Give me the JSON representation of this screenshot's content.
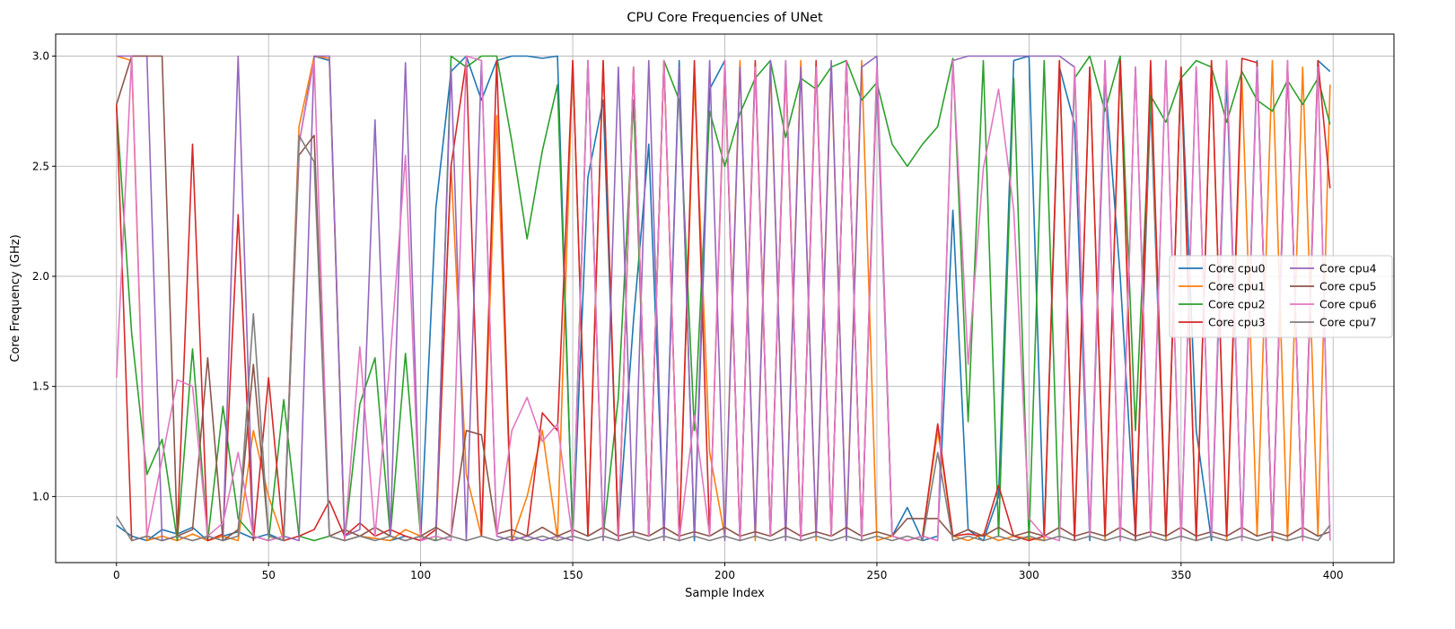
{
  "chart_data": {
    "type": "line",
    "title": "CPU Core Frequencies of UNet",
    "xlabel": "Sample Index",
    "ylabel": "Core Frequency (GHz)",
    "xlim": [
      -20,
      420
    ],
    "ylim": [
      0.7,
      3.1
    ],
    "xticks": [
      0,
      50,
      100,
      150,
      200,
      250,
      300,
      350,
      400
    ],
    "yticks": [
      1.0,
      1.5,
      2.0,
      2.5,
      3.0
    ],
    "ytick_labels": [
      "1.0",
      "1.5",
      "2.0",
      "2.5",
      "3.0"
    ],
    "grid": true,
    "legend_position": "center-right",
    "legend_columns": 2,
    "x": [
      0,
      5,
      10,
      15,
      20,
      25,
      30,
      35,
      40,
      45,
      50,
      55,
      60,
      65,
      70,
      75,
      80,
      85,
      90,
      95,
      100,
      105,
      110,
      115,
      120,
      125,
      130,
      135,
      140,
      145,
      150,
      155,
      160,
      165,
      170,
      175,
      180,
      185,
      190,
      195,
      200,
      205,
      210,
      215,
      220,
      225,
      230,
      235,
      240,
      245,
      250,
      255,
      260,
      265,
      270,
      275,
      280,
      285,
      290,
      295,
      300,
      305,
      310,
      315,
      320,
      325,
      330,
      335,
      340,
      345,
      350,
      355,
      360,
      365,
      370,
      375,
      380,
      385,
      390,
      395,
      399
    ],
    "series": [
      {
        "name": "Core cpu0",
        "color": "#1f77b4",
        "values": [
          0.87,
          0.82,
          0.8,
          0.85,
          0.83,
          0.86,
          0.8,
          0.82,
          0.84,
          0.81,
          0.83,
          0.8,
          2.6,
          3.0,
          2.98,
          0.8,
          0.82,
          0.81,
          0.8,
          0.82,
          0.8,
          2.31,
          2.93,
          3.0,
          2.8,
          2.98,
          3.0,
          3.0,
          2.99,
          3.0,
          0.8,
          2.45,
          2.8,
          0.85,
          1.8,
          2.6,
          0.82,
          2.98,
          0.8,
          2.85,
          2.98,
          0.8,
          2.95,
          0.82,
          2.98,
          0.8,
          2.95,
          0.83,
          2.98,
          0.8,
          2.9,
          0.82,
          0.95,
          0.8,
          0.82,
          2.3,
          0.85,
          0.8,
          1.0,
          2.98,
          3.0,
          0.8,
          2.95,
          2.69,
          0.8,
          2.9,
          2.0,
          0.82,
          2.8,
          0.8,
          2.95,
          1.3,
          0.8,
          2.9,
          0.82,
          2.98,
          0.8,
          2.95,
          0.82,
          2.98,
          2.93
        ]
      },
      {
        "name": "Core cpu1",
        "color": "#ff7f0e",
        "values": [
          3.0,
          2.98,
          0.8,
          0.82,
          0.8,
          0.83,
          0.8,
          0.82,
          0.8,
          1.3,
          1.0,
          0.8,
          2.68,
          3.0,
          2.99,
          0.8,
          0.82,
          0.81,
          0.8,
          0.85,
          0.82,
          0.8,
          2.5,
          1.1,
          0.82,
          2.73,
          0.8,
          1.0,
          1.3,
          0.81,
          2.98,
          0.82,
          2.98,
          0.8,
          2.95,
          0.82,
          2.98,
          0.8,
          2.9,
          1.2,
          0.82,
          2.98,
          0.8,
          2.95,
          0.82,
          2.98,
          0.8,
          2.95,
          0.82,
          2.98,
          0.8,
          0.82,
          0.8,
          0.82,
          1.3,
          0.82,
          0.8,
          0.83,
          0.8,
          0.82,
          0.81,
          0.8,
          2.98,
          0.82,
          2.95,
          0.8,
          2.98,
          0.82,
          2.9,
          0.8,
          2.95,
          0.82,
          2.98,
          0.8,
          2.9,
          0.82,
          2.98,
          0.8,
          2.95,
          0.82,
          2.87
        ]
      },
      {
        "name": "Core cpu2",
        "color": "#2ca02c",
        "values": [
          2.77,
          1.74,
          1.1,
          1.26,
          0.8,
          1.67,
          0.8,
          1.41,
          0.9,
          0.82,
          0.8,
          1.44,
          0.82,
          0.8,
          0.82,
          0.8,
          1.42,
          1.63,
          0.82,
          1.65,
          0.82,
          0.8,
          3.0,
          2.95,
          3.0,
          3.0,
          2.61,
          2.17,
          2.57,
          2.87,
          0.82,
          2.98,
          0.82,
          1.45,
          2.8,
          0.82,
          2.98,
          2.8,
          1.3,
          2.75,
          2.5,
          2.74,
          2.9,
          2.98,
          2.63,
          2.9,
          2.85,
          2.95,
          2.98,
          2.8,
          2.88,
          2.6,
          2.5,
          2.6,
          2.68,
          2.99,
          1.34,
          2.98,
          0.82,
          2.9,
          0.8,
          2.98,
          0.8,
          2.9,
          3.0,
          2.75,
          3.0,
          1.3,
          2.82,
          2.7,
          2.9,
          2.98,
          2.95,
          2.7,
          2.93,
          2.8,
          2.75,
          2.89,
          2.78,
          2.9,
          2.69
        ]
      },
      {
        "name": "Core cpu3",
        "color": "#d62728",
        "values": [
          2.78,
          0.8,
          0.82,
          0.8,
          0.82,
          2.6,
          0.8,
          0.83,
          2.28,
          0.8,
          1.54,
          0.8,
          0.82,
          0.85,
          0.98,
          0.82,
          0.88,
          0.82,
          0.85,
          0.82,
          0.8,
          0.85,
          2.5,
          2.98,
          0.82,
          2.98,
          0.8,
          0.82,
          1.38,
          1.3,
          2.98,
          0.82,
          2.98,
          0.8,
          2.95,
          0.82,
          2.98,
          0.8,
          2.98,
          0.82,
          2.95,
          0.8,
          2.98,
          0.82,
          2.95,
          0.8,
          2.98,
          0.82,
          2.98,
          0.8,
          2.95,
          0.82,
          0.8,
          0.82,
          1.33,
          0.82,
          0.83,
          0.82,
          1.05,
          0.82,
          0.8,
          0.82,
          2.98,
          0.8,
          2.95,
          0.82,
          2.98,
          0.8,
          2.98,
          0.82,
          2.95,
          0.8,
          2.98,
          0.82,
          2.99,
          2.97,
          0.8,
          2.95,
          0.82,
          2.98,
          2.4
        ]
      },
      {
        "name": "Core cpu4",
        "color": "#9467bd",
        "values": [
          3.0,
          3.0,
          3.0,
          0.8,
          0.82,
          0.8,
          0.82,
          0.8,
          3.0,
          0.82,
          0.8,
          0.82,
          0.8,
          3.0,
          3.0,
          0.82,
          0.85,
          2.71,
          0.82,
          2.97,
          0.8,
          0.82,
          2.95,
          0.8,
          2.98,
          0.82,
          0.8,
          0.82,
          0.8,
          0.82,
          0.8,
          2.98,
          0.8,
          2.95,
          0.82,
          2.98,
          0.8,
          2.95,
          0.82,
          2.98,
          0.8,
          2.95,
          0.82,
          2.98,
          0.8,
          2.95,
          0.82,
          2.98,
          0.8,
          2.95,
          3.0,
          0.82,
          0.8,
          0.82,
          0.8,
          2.98,
          3.0,
          3.0,
          3.0,
          3.0,
          3.0,
          3.0,
          3.0,
          2.95,
          0.82,
          2.98,
          0.8,
          2.95,
          0.82,
          2.98,
          0.8,
          2.95,
          0.82,
          2.98,
          0.8,
          2.95,
          0.82,
          2.98,
          0.8,
          2.95,
          0.8
        ]
      },
      {
        "name": "Core cpu5",
        "color": "#8c564b",
        "values": [
          2.78,
          3.0,
          3.0,
          3.0,
          0.82,
          0.85,
          1.63,
          0.8,
          0.85,
          1.6,
          0.82,
          0.8,
          2.55,
          2.64,
          0.82,
          0.85,
          0.82,
          0.86,
          0.82,
          0.8,
          0.82,
          0.86,
          0.82,
          1.3,
          1.28,
          0.83,
          0.85,
          0.82,
          0.86,
          0.82,
          0.85,
          0.82,
          0.86,
          0.82,
          0.84,
          0.82,
          0.86,
          0.82,
          0.84,
          0.82,
          0.86,
          0.82,
          0.84,
          0.82,
          0.86,
          0.82,
          0.84,
          0.82,
          0.86,
          0.82,
          0.84,
          0.82,
          0.9,
          0.9,
          0.9,
          0.82,
          0.85,
          0.82,
          0.86,
          0.82,
          0.84,
          0.82,
          0.86,
          0.82,
          0.84,
          0.82,
          0.86,
          0.82,
          0.84,
          0.82,
          0.86,
          0.82,
          0.84,
          0.82,
          0.86,
          0.82,
          0.84,
          0.82,
          0.86,
          0.82,
          0.84
        ]
      },
      {
        "name": "Core cpu6",
        "color": "#e377c2",
        "values": [
          1.54,
          3.0,
          0.82,
          1.17,
          1.53,
          1.5,
          0.82,
          0.88,
          1.2,
          0.82,
          0.8,
          0.82,
          2.6,
          2.98,
          0.82,
          0.8,
          1.68,
          0.82,
          1.63,
          2.55,
          0.8,
          0.82,
          0.8,
          3.0,
          2.98,
          0.82,
          1.3,
          1.45,
          1.25,
          1.33,
          0.8,
          2.98,
          0.82,
          0.8,
          2.95,
          0.82,
          2.98,
          0.8,
          1.37,
          0.82,
          2.98,
          0.8,
          2.95,
          0.82,
          2.98,
          0.8,
          2.95,
          0.82,
          2.98,
          0.8,
          2.95,
          0.82,
          0.8,
          0.82,
          0.8,
          2.98,
          1.6,
          2.49,
          2.85,
          2.3,
          0.9,
          0.82,
          0.8,
          2.95,
          0.82,
          2.98,
          0.8,
          2.95,
          0.82,
          2.98,
          0.8,
          2.95,
          0.82,
          2.98,
          0.8,
          2.95,
          0.82,
          2.98,
          0.8,
          2.95,
          0.8
        ]
      },
      {
        "name": "Core cpu7",
        "color": "#7f7f7f",
        "values": [
          0.91,
          0.8,
          0.82,
          0.8,
          0.82,
          0.8,
          0.82,
          0.8,
          0.82,
          1.83,
          0.82,
          0.8,
          2.64,
          2.52,
          0.82,
          0.8,
          0.82,
          0.8,
          0.82,
          0.8,
          0.82,
          0.8,
          0.82,
          0.8,
          0.82,
          0.8,
          0.82,
          0.8,
          0.82,
          0.8,
          0.82,
          0.8,
          0.82,
          0.8,
          0.82,
          0.8,
          0.82,
          0.8,
          0.82,
          0.8,
          0.82,
          0.8,
          0.82,
          0.8,
          0.82,
          0.8,
          0.82,
          0.8,
          0.82,
          0.8,
          0.82,
          0.8,
          0.82,
          0.8,
          1.2,
          0.8,
          0.82,
          0.8,
          0.82,
          0.8,
          0.82,
          0.8,
          0.82,
          0.8,
          0.82,
          0.8,
          0.82,
          0.8,
          0.82,
          0.8,
          0.82,
          0.8,
          0.82,
          0.8,
          0.82,
          0.8,
          0.82,
          0.8,
          0.82,
          0.8,
          0.87
        ]
      }
    ]
  }
}
